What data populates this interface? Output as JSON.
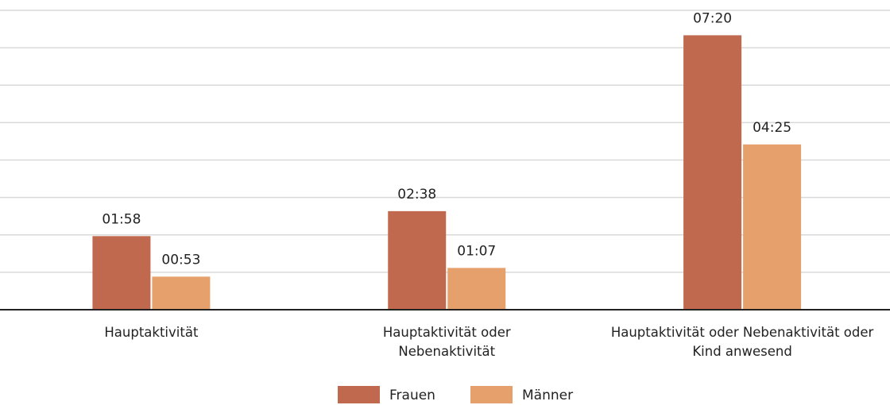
{
  "chart_data": {
    "type": "bar",
    "categories": [
      "Hauptaktivität",
      "Hauptaktivität oder Nebenaktivität",
      "Hauptaktivität oder Nebenaktivität oder Kind anwesend"
    ],
    "series": [
      {
        "name": "Frauen",
        "color": "#c0694f",
        "values": [
          118,
          158,
          440
        ],
        "value_labels": [
          "01:58",
          "02:38",
          "07:20"
        ]
      },
      {
        "name": "Männer",
        "color": "#e5a06c",
        "values": [
          53,
          67,
          265
        ],
        "value_labels": [
          "00:53",
          "01:07",
          "04:25"
        ]
      }
    ],
    "ylim": [
      0,
      480
    ],
    "yticks": [
      0,
      60,
      120,
      180,
      240,
      300,
      360,
      420,
      480
    ],
    "grid": true,
    "legend": "bottom"
  }
}
